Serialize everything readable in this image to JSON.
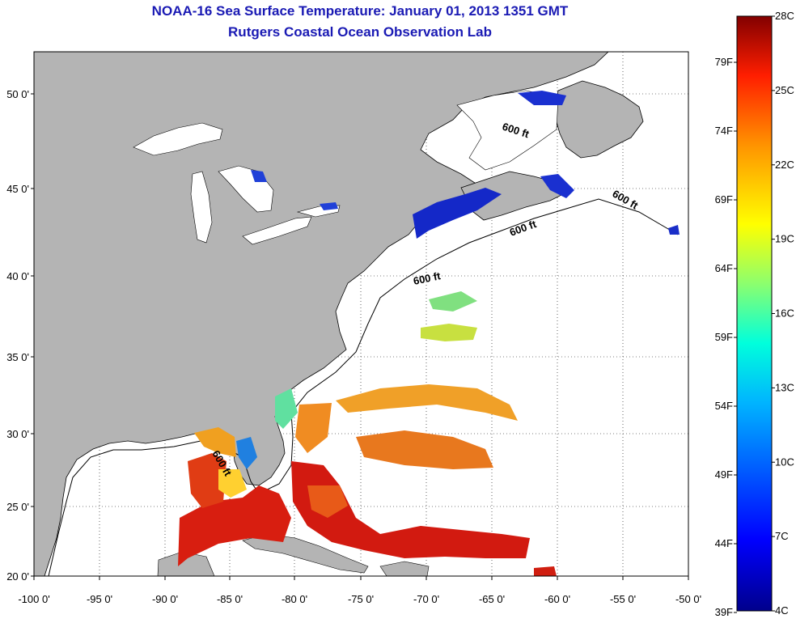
{
  "title": {
    "line1": "NOAA-16 Sea Surface Temperature:  January 01, 2013 1351 GMT",
    "line2": "Rutgers Coastal Ocean Observation Lab"
  },
  "map": {
    "lat_ticks": [
      "50 0'",
      "45 0'",
      "40 0'",
      "35 0'",
      "30 0'",
      "25 0'",
      "20 0'"
    ],
    "lon_ticks": [
      "-100 0'",
      "-95 0'",
      "-90 0'",
      "-85 0'",
      "-80 0'",
      "-75 0'",
      "-70 0'",
      "-65 0'",
      "-60 0'",
      "-55 0'",
      "-50 0'"
    ],
    "contour_label": "600 ft",
    "colors": {
      "land": "#b4b4b4",
      "ocean": "#ffffff",
      "title": "#1a1ab4"
    }
  },
  "colorbar": {
    "celsius": [
      "28C",
      "25C",
      "22C",
      "19C",
      "16C",
      "13C",
      "10C",
      "7C",
      "4C"
    ],
    "fahrenheit": [
      "79F",
      "74F",
      "69F",
      "64F",
      "59F",
      "54F",
      "49F",
      "44F",
      "39F"
    ],
    "colors": [
      "#800000",
      "#ff0000",
      "#ff8000",
      "#ffff00",
      "#80ff80",
      "#00ffff",
      "#0080ff",
      "#0000ff",
      "#000080"
    ]
  }
}
